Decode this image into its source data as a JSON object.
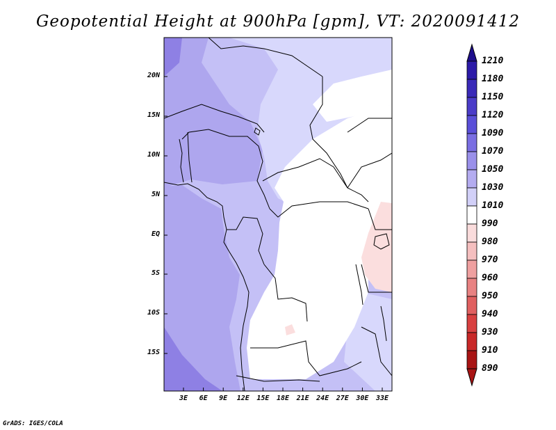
{
  "title": "Geopotential Height at 900hPa [gpm], VT: 2020091412",
  "footer": "GrADS: IGES/COLA",
  "lat_labels": [
    "20N",
    "15N",
    "10N",
    "5N",
    "EQ",
    "5S",
    "10S",
    "15S"
  ],
  "lon_labels": [
    "3E",
    "6E",
    "9E",
    "12E",
    "15E",
    "18E",
    "21E",
    "24E",
    "27E",
    "30E",
    "33E"
  ],
  "colorbar": {
    "levels": [
      "1210",
      "1180",
      "1150",
      "1120",
      "1090",
      "1070",
      "1050",
      "1030",
      "1010",
      "990",
      "980",
      "970",
      "960",
      "950",
      "940",
      "930",
      "910",
      "890"
    ],
    "colors": [
      "#1e0e8c",
      "#2c1aa8",
      "#3a2ab8",
      "#4b3cc8",
      "#5a4fd8",
      "#7a6ee2",
      "#9a90ea",
      "#b4acf0",
      "#d2d0f8",
      "#ffffff",
      "#fadcdc",
      "#f5bfbf",
      "#efa0a0",
      "#e88282",
      "#e06060",
      "#d84040",
      "#c82828",
      "#a81414"
    ]
  },
  "colors": {
    "c1010": "#d8d8fc",
    "c1030": "#c4c0f6",
    "c1050": "#aea6ee",
    "c1070": "#8e80e4",
    "c980": "#fbdede",
    "border": "#000000"
  }
}
